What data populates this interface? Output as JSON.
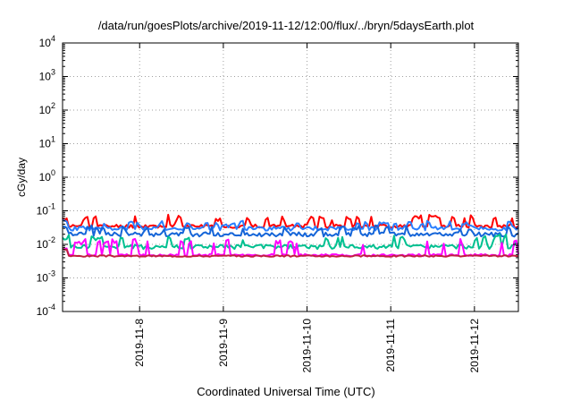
{
  "chart_data": {
    "type": "line",
    "title": "/data/run/goesPlots/archive/2019-11-12/12:00/flux/../bryn/5daysEarth.plot",
    "xlabel": "Coordinated Universal Time (UTC)",
    "ylabel": "cGy/day",
    "yscale": "log",
    "ylim": [
      0.0001,
      10000
    ],
    "y_ticks": [
      {
        "base": "10",
        "exp": "4"
      },
      {
        "base": "10",
        "exp": "3"
      },
      {
        "base": "10",
        "exp": "2"
      },
      {
        "base": "10",
        "exp": "1"
      },
      {
        "base": "10",
        "exp": "0"
      },
      {
        "base": "10",
        "exp": "-1"
      },
      {
        "base": "10",
        "exp": "-2"
      },
      {
        "base": "10",
        "exp": "-3"
      },
      {
        "base": "10",
        "exp": "-4"
      }
    ],
    "x_range_days": [
      0,
      5.5
    ],
    "x_ticks": [
      {
        "label": "2019-11-8",
        "day": 0.93
      },
      {
        "label": "2019-11-9",
        "day": 1.94
      },
      {
        "label": "2019-11-10",
        "day": 2.95
      },
      {
        "label": "2019-11-11",
        "day": 3.96
      },
      {
        "label": "2019-11-12",
        "day": 4.97
      }
    ],
    "grid": true,
    "series": [
      {
        "color": "#ff0000",
        "base": 0.035,
        "noise": 0.25,
        "spikes": 0.45,
        "seed": 11
      },
      {
        "color": "#2a7fff",
        "base": 0.03,
        "noise": 0.3,
        "spikes": 0.25,
        "seed": 23
      },
      {
        "color": "#1565d8",
        "base": 0.02,
        "noise": 0.3,
        "spikes": 0.3,
        "seed": 37
      },
      {
        "color": "#00c090",
        "base": 0.0085,
        "noise": 0.3,
        "spikes": 0.5,
        "seed": 41
      },
      {
        "color": "#ff00ff",
        "base": 0.0048,
        "noise": 0.15,
        "spikes": 0.9,
        "seed": 53
      },
      {
        "color": "#c02040",
        "base": 0.0045,
        "noise": 0.1,
        "spikes": 0.0,
        "seed": 67
      }
    ]
  }
}
